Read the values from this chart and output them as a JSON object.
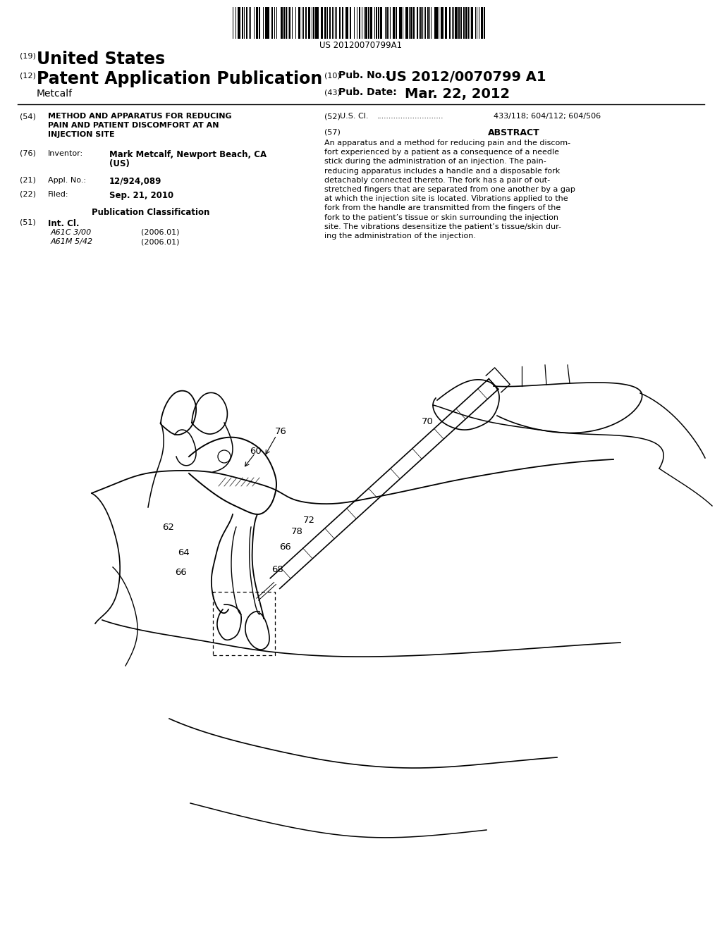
{
  "background_color": "#ffffff",
  "barcode_text": "US 20120070799A1",
  "header": {
    "number_19": "(19)",
    "united_states": "United States",
    "number_12": "(12)",
    "patent_app": "Patent Application Publication",
    "inventor_name": "Metcalf",
    "number_10": "(10)",
    "pub_no_label": "Pub. No.:",
    "pub_no": "US 2012/0070799 A1",
    "number_43": "(43)",
    "pub_date_label": "Pub. Date:",
    "pub_date": "Mar. 22, 2012"
  },
  "left_column": {
    "field_54_num": "(54)",
    "field_54_lines": [
      "METHOD AND APPARATUS FOR REDUCING",
      "PAIN AND PATIENT DISCOMFORT AT AN",
      "INJECTION SITE"
    ],
    "field_76_num": "(76)",
    "field_76_label": "Inventor:",
    "field_76_value_line1": "Mark Metcalf, Newport Beach, CA",
    "field_76_value_line2": "(US)",
    "field_21_num": "(21)",
    "field_21_label": "Appl. No.:",
    "field_21_value": "12/924,089",
    "field_22_num": "(22)",
    "field_22_label": "Filed:",
    "field_22_value": "Sep. 21, 2010",
    "pub_class_header": "Publication Classification",
    "field_51_num": "(51)",
    "field_51_label": "Int. Cl.",
    "field_51_class1": "A61C 3/00",
    "field_51_date1": "(2006.01)",
    "field_51_class2": "A61M 5/42",
    "field_51_date2": "(2006.01)"
  },
  "right_column": {
    "field_52_num": "(52)",
    "field_52_label": "U.S. Cl.",
    "field_52_dots": "............................",
    "field_52_value": "433/118; 604/112; 604/506",
    "field_57_num": "(57)",
    "abstract_title": "ABSTRACT",
    "abstract_text": "An apparatus and a method for reducing pain and the discom-fort experienced by a patient as a consequence of a needle stick during the administration of an injection. The pain-reducing apparatus includes a handle and a disposable fork detachably connected thereto. The fork has a pair of out-stretched fingers that are separated from one another by a gap at which the injection site is located. Vibrations applied to the fork from the handle are transmitted from the fingers of the fork to the patient’s tissue or skin surrounding the injection site. The vibrations desensitize the patient’s tissue/skin dur-ing the administration of the injection."
  }
}
